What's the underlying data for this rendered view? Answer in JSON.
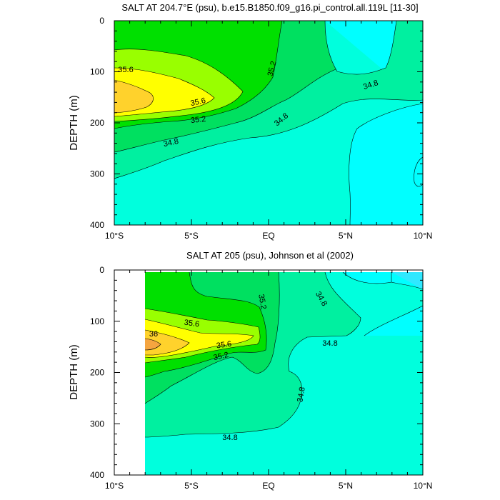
{
  "chart_data": [
    {
      "type": "contour",
      "title": "SALT AT 204.7°E (psu), b.e15.B1850.f09_g16.pi_control.all.119L [11-30]",
      "xlabel": "",
      "ylabel": "DEPTH (m)",
      "x_ticks": [
        "10°S",
        "5°S",
        "EQ",
        "5°N",
        "10°N"
      ],
      "x_tick_values": [
        -10,
        -5,
        0,
        5,
        10
      ],
      "y_ticks": [
        "0",
        "100",
        "200",
        "300",
        "400"
      ],
      "y_tick_values": [
        0,
        100,
        200,
        300,
        400
      ],
      "xlim": [
        -10,
        10
      ],
      "ylim": [
        400,
        0
      ],
      "y_inverted": true,
      "contour_interval": 0.2,
      "contour_labels": [
        "35.6",
        "35.6",
        "35.2",
        "35.2",
        "34.8",
        "34.8",
        "34.8"
      ],
      "fill_levels": [
        {
          "range": "< 34.6",
          "color": "#00FFFF"
        },
        {
          "range": "34.6–34.8",
          "color": "#00FFDD"
        },
        {
          "range": "34.8–35.0",
          "color": "#00F0A0"
        },
        {
          "range": "35.0–35.2",
          "color": "#00E060"
        },
        {
          "range": "35.2–35.4",
          "color": "#00E000"
        },
        {
          "range": "35.4–35.6",
          "color": "#99FF00"
        },
        {
          "range": "35.6–35.8",
          "color": "#FFFF00"
        },
        {
          "range": "35.8–36.0",
          "color": "#FFD22C"
        }
      ],
      "salinity_max": {
        "x": -9,
        "depth": 145,
        "value": 35.9
      }
    },
    {
      "type": "contour",
      "title": "SALT AT 205 (psu), Johnson et al (2002)",
      "xlabel": "",
      "ylabel": "DEPTH (m)",
      "x_ticks": [
        "10°S",
        "5°S",
        "EQ",
        "5°N",
        "10°N"
      ],
      "x_tick_values": [
        -10,
        -5,
        0,
        5,
        10
      ],
      "y_ticks": [
        "0",
        "100",
        "200",
        "300",
        "400"
      ],
      "y_tick_values": [
        0,
        100,
        200,
        300,
        400
      ],
      "xlim": [
        -10,
        10
      ],
      "ylim": [
        400,
        0
      ],
      "y_inverted": true,
      "data_extent": {
        "x": [
          -8,
          10
        ],
        "depth": [
          0,
          400
        ]
      },
      "contour_interval": 0.2,
      "contour_labels": [
        "35.6",
        "36",
        "35.6",
        "35.2",
        "35.2",
        "34.8",
        "34.8",
        "34.8",
        "34.8"
      ],
      "fill_levels": [
        {
          "range": "< 34.6",
          "color": "#30E8FF"
        },
        {
          "range": "34.6–34.8",
          "color": "#00FFDD"
        },
        {
          "range": "34.8–35.0",
          "color": "#00F0A0"
        },
        {
          "range": "35.0–35.2",
          "color": "#00E060"
        },
        {
          "range": "35.2–35.4",
          "color": "#00E000"
        },
        {
          "range": "35.4–35.6",
          "color": "#99FF00"
        },
        {
          "range": "35.6–35.8",
          "color": "#FFFF00"
        },
        {
          "range": "35.8–36.0",
          "color": "#FFD22C"
        },
        {
          "range": "> 36.0",
          "color": "#F5A540"
        }
      ],
      "salinity_max": {
        "x": -7.5,
        "depth": 145,
        "value": 36.1
      }
    }
  ]
}
